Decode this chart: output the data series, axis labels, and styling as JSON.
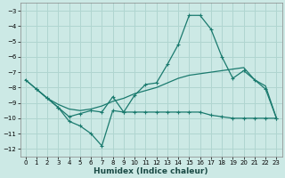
{
  "xlabel": "Humidex (Indice chaleur)",
  "background_color": "#cce9e5",
  "grid_color": "#b0d5d0",
  "line_color": "#1a7a6e",
  "xlim": [
    -0.5,
    23.5
  ],
  "ylim": [
    -12.5,
    -2.5
  ],
  "xticks": [
    0,
    1,
    2,
    3,
    4,
    5,
    6,
    7,
    8,
    9,
    10,
    11,
    12,
    13,
    14,
    15,
    16,
    17,
    18,
    19,
    20,
    21,
    22,
    23
  ],
  "yticks": [
    -12,
    -11,
    -10,
    -9,
    -8,
    -7,
    -6,
    -5,
    -4,
    -3
  ],
  "line1_x": [
    0,
    1,
    2,
    3,
    4,
    5,
    6,
    7,
    8,
    9,
    10,
    11,
    12,
    13,
    14,
    15,
    16,
    17,
    18,
    19,
    20,
    21,
    22,
    23
  ],
  "line1_y": [
    -7.5,
    -8.1,
    -8.7,
    -9.3,
    -10.2,
    -10.5,
    -11.0,
    -11.8,
    -9.5,
    -9.6,
    -8.5,
    -7.8,
    -7.7,
    -6.5,
    -5.2,
    -3.3,
    -3.3,
    -4.2,
    -6.0,
    -7.4,
    -6.9,
    -7.5,
    -8.1,
    -10.0
  ],
  "line2_x": [
    0,
    1,
    2,
    3,
    4,
    5,
    6,
    7,
    8,
    9,
    10,
    11,
    12,
    13,
    14,
    15,
    16,
    17,
    18,
    19,
    20,
    21,
    22,
    23
  ],
  "line2_y": [
    -7.5,
    -8.1,
    -8.7,
    -9.1,
    -9.4,
    -9.5,
    -9.4,
    -9.2,
    -8.9,
    -8.7,
    -8.4,
    -8.2,
    -8.0,
    -7.7,
    -7.4,
    -7.2,
    -7.1,
    -7.0,
    -6.9,
    -6.8,
    -6.7,
    -7.5,
    -7.9,
    -10.0
  ],
  "line3_x": [
    1,
    2,
    3,
    4,
    5,
    6,
    7,
    8,
    9,
    10,
    11,
    12,
    13,
    14,
    15,
    16,
    17,
    18,
    19,
    20,
    21,
    22,
    23
  ],
  "line3_y": [
    -8.1,
    -8.7,
    -9.3,
    -9.9,
    -9.7,
    -9.5,
    -9.6,
    -8.6,
    -9.6,
    -9.6,
    -9.6,
    -9.6,
    -9.6,
    -9.6,
    -9.6,
    -9.6,
    -9.8,
    -9.9,
    -10.0,
    -10.0,
    -10.0,
    -10.0,
    -10.0
  ]
}
